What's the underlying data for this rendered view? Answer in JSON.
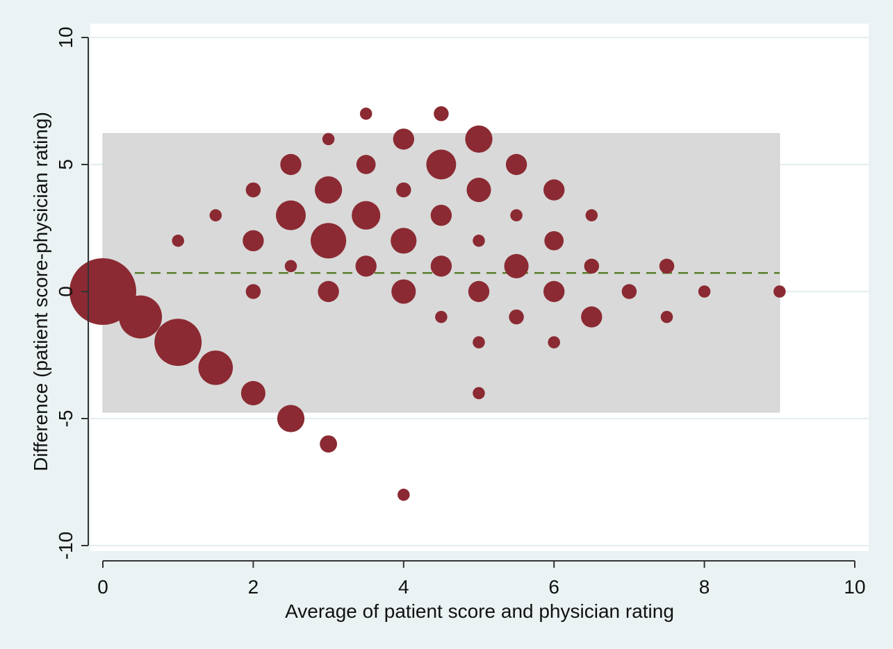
{
  "chart_data": {
    "type": "scatter",
    "subtype": "bland-altman bubble plot",
    "title": "",
    "xlabel": "Average of patient score and physician rating",
    "ylabel": "Difference (patient score-physician rating)",
    "xlim": [
      0,
      10
    ],
    "ylim": [
      -10,
      10
    ],
    "x_ticks": [
      "0",
      "2",
      "4",
      "6",
      "8",
      "10"
    ],
    "y_ticks": [
      "-10",
      "-5",
      "0",
      "5",
      "10"
    ],
    "grid": "horizontal",
    "mean_difference": 0.73,
    "limits_of_agreement": {
      "lower": -4.75,
      "upper": 6.22,
      "x_range": [
        0,
        9
      ]
    },
    "colors": {
      "plot_background": "#ffffff",
      "outer_background": "#eaf2f3",
      "band": "#d9d9d9",
      "marker": "#8b2a32",
      "mean_line": "#5a7f2a",
      "grid": "#e4edef",
      "axis": "#333333"
    },
    "points": [
      {
        "x": 0,
        "y": 0,
        "n": 60
      },
      {
        "x": 0.5,
        "y": -1,
        "n": 25
      },
      {
        "x": 1,
        "y": -2,
        "n": 30
      },
      {
        "x": 1,
        "y": 2,
        "n": 2
      },
      {
        "x": 1.5,
        "y": -3,
        "n": 16
      },
      {
        "x": 1.5,
        "y": 3,
        "n": 2
      },
      {
        "x": 2,
        "y": -4,
        "n": 8
      },
      {
        "x": 2,
        "y": 0,
        "n": 3
      },
      {
        "x": 2,
        "y": 2,
        "n": 6
      },
      {
        "x": 2,
        "y": 4,
        "n": 3
      },
      {
        "x": 2.5,
        "y": -5,
        "n": 10
      },
      {
        "x": 2.5,
        "y": 1,
        "n": 2
      },
      {
        "x": 2.5,
        "y": 3,
        "n": 12
      },
      {
        "x": 2.5,
        "y": 5,
        "n": 6
      },
      {
        "x": 3,
        "y": -6,
        "n": 4
      },
      {
        "x": 3,
        "y": 0,
        "n": 6
      },
      {
        "x": 3,
        "y": 2,
        "n": 17
      },
      {
        "x": 3,
        "y": 4,
        "n": 10
      },
      {
        "x": 3,
        "y": 6,
        "n": 2
      },
      {
        "x": 3.5,
        "y": 1,
        "n": 6
      },
      {
        "x": 3.5,
        "y": 3,
        "n": 11
      },
      {
        "x": 3.5,
        "y": 5,
        "n": 5
      },
      {
        "x": 3.5,
        "y": 7,
        "n": 2
      },
      {
        "x": 4,
        "y": -8,
        "n": 2
      },
      {
        "x": 4,
        "y": 0,
        "n": 8
      },
      {
        "x": 4,
        "y": 2,
        "n": 9
      },
      {
        "x": 4,
        "y": 4,
        "n": 3
      },
      {
        "x": 4,
        "y": 6,
        "n": 6
      },
      {
        "x": 4.5,
        "y": -1,
        "n": 2
      },
      {
        "x": 4.5,
        "y": 1,
        "n": 6
      },
      {
        "x": 4.5,
        "y": 3,
        "n": 6
      },
      {
        "x": 4.5,
        "y": 5,
        "n": 12
      },
      {
        "x": 4.5,
        "y": 7,
        "n": 3
      },
      {
        "x": 5,
        "y": -4,
        "n": 2
      },
      {
        "x": 5,
        "y": -2,
        "n": 2
      },
      {
        "x": 5,
        "y": 0,
        "n": 6
      },
      {
        "x": 5,
        "y": 2,
        "n": 2
      },
      {
        "x": 5,
        "y": 4,
        "n": 8
      },
      {
        "x": 5,
        "y": 6,
        "n": 10
      },
      {
        "x": 5.5,
        "y": -1,
        "n": 3
      },
      {
        "x": 5.5,
        "y": 1,
        "n": 8
      },
      {
        "x": 5.5,
        "y": 3,
        "n": 2
      },
      {
        "x": 5.5,
        "y": 5,
        "n": 6
      },
      {
        "x": 6,
        "y": -2,
        "n": 2
      },
      {
        "x": 6,
        "y": 0,
        "n": 6
      },
      {
        "x": 6,
        "y": 2,
        "n": 5
      },
      {
        "x": 6,
        "y": 4,
        "n": 6
      },
      {
        "x": 6.5,
        "y": -1,
        "n": 6
      },
      {
        "x": 6.5,
        "y": 1,
        "n": 3
      },
      {
        "x": 6.5,
        "y": 3,
        "n": 2
      },
      {
        "x": 7,
        "y": 0,
        "n": 3
      },
      {
        "x": 7.5,
        "y": -1,
        "n": 2
      },
      {
        "x": 7.5,
        "y": 1,
        "n": 3
      },
      {
        "x": 8,
        "y": 0,
        "n": 2
      },
      {
        "x": 9,
        "y": 0,
        "n": 2
      }
    ]
  }
}
